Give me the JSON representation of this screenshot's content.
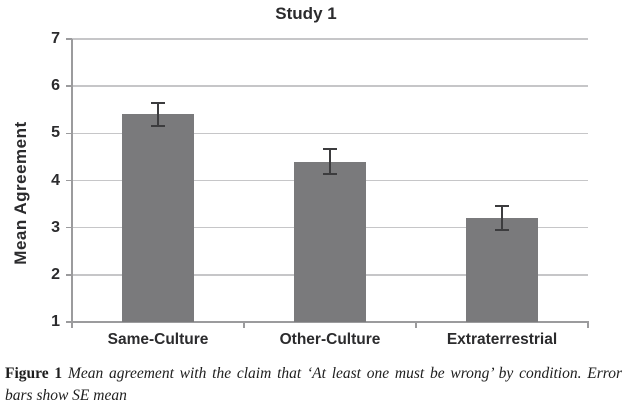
{
  "figure": {
    "caption": {
      "label": "Figure 1",
      "text": "Mean agreement with the claim that ‘At least one must be wrong’ by condition. Error bars show SE mean"
    }
  },
  "chart_data": {
    "type": "bar",
    "title": "Study 1",
    "xlabel": "",
    "ylabel": "Mean Agreement",
    "categories": [
      "Same-Culture",
      "Other-Culture",
      "Extraterrestrial"
    ],
    "values": [
      5.4,
      4.4,
      3.2
    ],
    "error_bars": {
      "type": "SE mean",
      "values": [
        0.25,
        0.27,
        0.25
      ]
    },
    "ylim": [
      1,
      7
    ],
    "yticks": [
      1,
      2,
      3,
      4,
      5,
      6,
      7
    ],
    "grid": "horizontal",
    "legend": "none",
    "colors": {
      "bar": "#7a7a7c",
      "gridline": "#c6c6c8",
      "axis": "#9b9b9d",
      "error_bar": "#3c3c3e",
      "text": "#2b2b2d"
    }
  }
}
